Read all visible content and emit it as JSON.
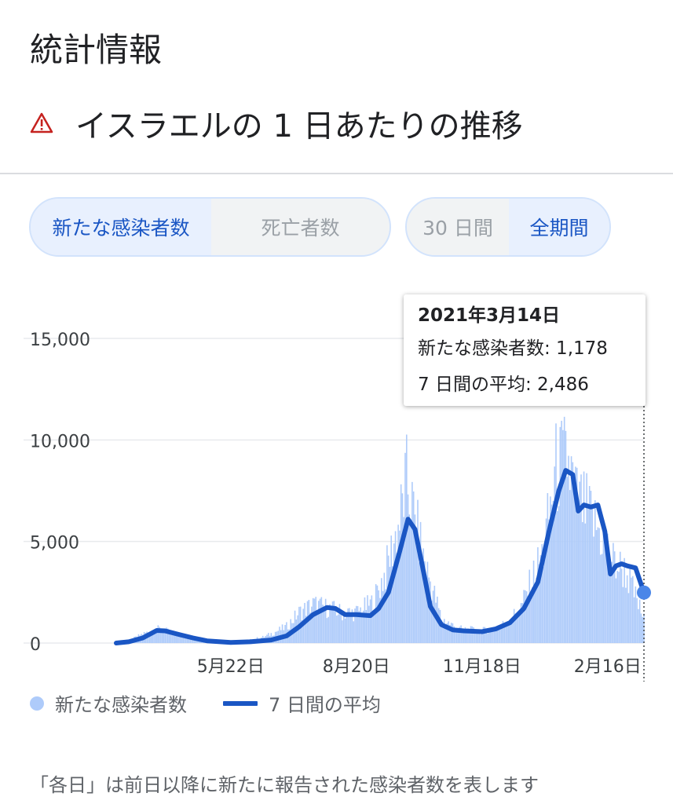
{
  "header": {
    "section_title": "統計情報",
    "chart_title": "イスラエルの 1 日あたりの推移",
    "warning_icon": "warning-triangle-icon"
  },
  "metric_toggle": {
    "options": [
      "新たな感染者数",
      "死亡者数"
    ],
    "selected": "新たな感染者数"
  },
  "period_toggle": {
    "options": [
      "30 日間",
      "全期間"
    ],
    "selected": "全期間"
  },
  "tooltip": {
    "date": "2021年3月14日",
    "new_cases_line": "新たな感染者数: 1,178",
    "avg_line": "7 日間の平均: 2,486"
  },
  "legend": {
    "bars": "新たな感染者数",
    "line": "7 日間の平均"
  },
  "footnote": "「各日」は前日以降に新たに報告された感染者数を表します",
  "colors": {
    "accent": "#1a56c4",
    "bars": "#aecbfa",
    "warning": "#c5221f"
  },
  "chart_data": {
    "type": "bar",
    "title": "",
    "xlabel": "",
    "ylabel": "",
    "ylim": [
      0,
      15000
    ],
    "yticks": [
      0,
      5000,
      10000,
      15000
    ],
    "y_tick_labels": [
      "0",
      "5,000",
      "10,000",
      "15,000"
    ],
    "x_range": [
      "2020-03-01",
      "2021-03-14"
    ],
    "x_ticks": [
      {
        "date": "2020-05-22",
        "label": "5月22日"
      },
      {
        "date": "2020-08-20",
        "label": "8月20日"
      },
      {
        "date": "2020-11-18",
        "label": "11月18日"
      },
      {
        "date": "2021-02-16",
        "label": "2月16日"
      }
    ],
    "grid": true,
    "legend_position": "bottom-left",
    "series": [
      {
        "name": "新たな感染者数",
        "type": "bar",
        "values_anchor_dates": [
          "2020-03-01",
          "2020-03-10",
          "2020-03-20",
          "2020-04-01",
          "2020-04-10",
          "2020-04-20",
          "2020-05-01",
          "2020-05-15",
          "2020-06-01",
          "2020-06-15",
          "2020-07-01",
          "2020-07-10",
          "2020-07-20",
          "2020-08-01",
          "2020-08-10",
          "2020-08-20",
          "2020-09-01",
          "2020-09-10",
          "2020-09-20",
          "2020-09-25",
          "2020-10-01",
          "2020-10-10",
          "2020-10-20",
          "2020-11-01",
          "2020-11-18",
          "2020-12-01",
          "2020-12-15",
          "2021-01-01",
          "2021-01-10",
          "2021-01-18",
          "2021-01-25",
          "2021-02-01",
          "2021-02-10",
          "2021-02-20",
          "2021-03-01",
          "2021-03-14"
        ],
        "values_anchor": [
          10,
          100,
          450,
          700,
          500,
          300,
          100,
          40,
          100,
          300,
          800,
          1500,
          1900,
          1700,
          1500,
          1500,
          2000,
          3500,
          6000,
          8000,
          6000,
          3500,
          1200,
          700,
          600,
          800,
          1600,
          4500,
          8500,
          9000,
          7000,
          6500,
          5500,
          4000,
          3500,
          1178
        ]
      },
      {
        "name": "7 日間の平均",
        "type": "line",
        "x": [
          "2020-03-01",
          "2020-03-10",
          "2020-03-20",
          "2020-03-30",
          "2020-04-05",
          "2020-04-15",
          "2020-04-25",
          "2020-05-05",
          "2020-05-22",
          "2020-06-05",
          "2020-06-20",
          "2020-07-01",
          "2020-07-10",
          "2020-07-20",
          "2020-07-30",
          "2020-08-05",
          "2020-08-12",
          "2020-08-20",
          "2020-08-30",
          "2020-09-05",
          "2020-09-12",
          "2020-09-20",
          "2020-09-26",
          "2020-10-01",
          "2020-10-06",
          "2020-10-12",
          "2020-10-20",
          "2020-10-28",
          "2020-11-05",
          "2020-11-18",
          "2020-11-28",
          "2020-12-08",
          "2020-12-18",
          "2020-12-28",
          "2021-01-05",
          "2021-01-12",
          "2021-01-17",
          "2021-01-22",
          "2021-01-26",
          "2021-01-30",
          "2021-02-04",
          "2021-02-09",
          "2021-02-14",
          "2021-02-18",
          "2021-02-22",
          "2021-02-26",
          "2021-03-02",
          "2021-03-08",
          "2021-03-14"
        ],
        "y": [
          0,
          60,
          250,
          620,
          600,
          420,
          250,
          110,
          30,
          60,
          150,
          350,
          800,
          1400,
          1750,
          1700,
          1400,
          1400,
          1350,
          1700,
          2500,
          4500,
          6100,
          5600,
          3900,
          1800,
          900,
          650,
          600,
          560,
          700,
          1000,
          1700,
          3000,
          5500,
          7500,
          8500,
          8300,
          6500,
          6800,
          6700,
          6800,
          5500,
          3400,
          3800,
          3900,
          3800,
          3700,
          2486
        ]
      }
    ],
    "highlight_point": {
      "date": "2021-03-14",
      "value": 2486
    }
  }
}
